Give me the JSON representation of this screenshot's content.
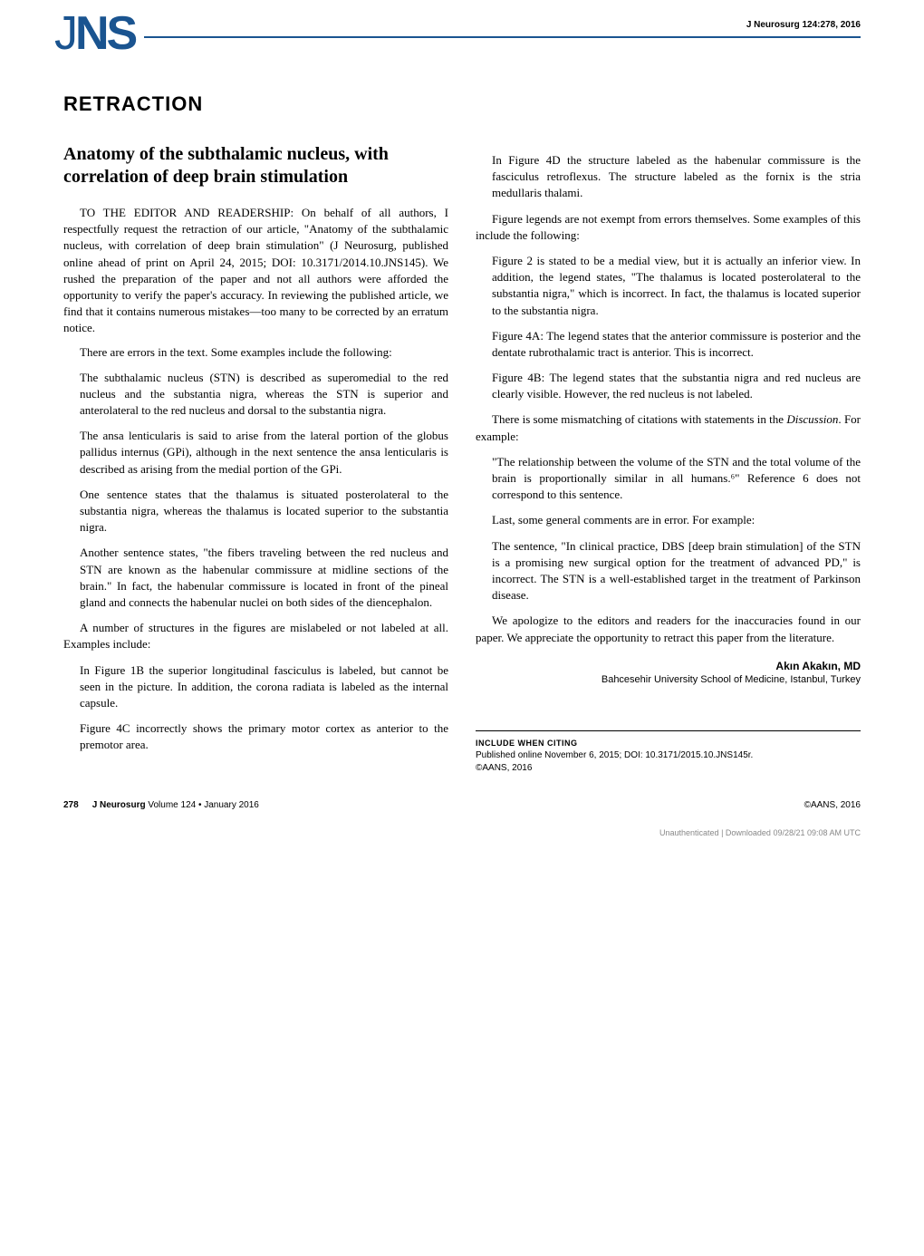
{
  "header": {
    "logo_j": "J",
    "logo_ns": "NS",
    "citation": "J Neurosurg 124:278, 2016"
  },
  "retraction_heading": "RETRACTION",
  "article_title": "Anatomy of the subthalamic nucleus, with correlation of deep brain stimulation",
  "col1": {
    "p1": "TO THE EDITOR AND READERSHIP: On behalf of all authors, I respectfully request the retraction of our article, \"Anatomy of the subthalamic nucleus, with correlation of deep brain stimulation\" (J Neurosurg, published online ahead of print on April 24, 2015; DOI: 10.3171/2014.10.JNS145). We rushed the preparation of the paper and not all authors were afforded the opportunity to verify the paper's accuracy. In reviewing the published article, we find that it contains numerous mistakes—too many to be corrected by an erratum notice.",
    "p2": "There are errors in the text. Some examples include the following:",
    "q1": "The subthalamic nucleus (STN) is described as superomedial to the red nucleus and the substantia nigra, whereas the STN is superior and anterolateral to the red nucleus and dorsal to the substantia nigra.",
    "q2": "The ansa lenticularis is said to arise from the lateral portion of the globus pallidus internus (GPi), although in the next sentence the ansa lenticularis is described as arising from the medial portion of the GPi.",
    "q3": "One sentence states that the thalamus is situated posterolateral to the substantia nigra, whereas the thalamus is located superior to the substantia nigra.",
    "q4": "Another sentence states, \"the fibers traveling between the red nucleus and STN are known as the habenular commissure at midline sections of the brain.\" In fact, the habenular commissure is located in front of the pineal gland and connects the habenular nuclei on both sides of the diencephalon.",
    "p3": "A number of structures in the figures are mislabeled or not labeled at all. Examples include:",
    "q5": "In Figure 1B the superior longitudinal fasciculus is labeled, but cannot be seen in the picture. In addition, the corona radiata is labeled as the internal capsule.",
    "q6": "Figure 4C incorrectly shows the primary motor cortex as anterior to the premotor area."
  },
  "col2": {
    "q1": "In Figure 4D the structure labeled as the habenular commissure is the fasciculus retroflexus. The structure labeled as the fornix is the stria medullaris thalami.",
    "p1": "Figure legends are not exempt from errors themselves. Some examples of this include the following:",
    "q2": "Figure 2 is stated to be a medial view, but it is actually an inferior view. In addition, the legend states, \"The thalamus is located posterolateral to the substantia nigra,\" which is incorrect. In fact, the thalamus is located superior to the substantia nigra.",
    "q3": "Figure 4A: The legend states that the anterior commissure is posterior and the dentate rubrothalamic tract is anterior. This is incorrect.",
    "q4": "Figure 4B: The legend states that the substantia nigra and red nucleus are clearly visible. However, the red nucleus is not labeled.",
    "p2_prefix": "There is some mismatching of citations with statements in the ",
    "p2_italic": "Discussion",
    "p2_suffix": ". For example:",
    "q5": "\"The relationship between the volume of the STN and the total volume of the brain is proportionally similar in all humans.⁶\" Reference 6 does not correspond to this sentence.",
    "p3": "Last, some general comments are in error. For example:",
    "q6": "The sentence, \"In clinical practice, DBS [deep brain stimulation] of the STN is a promising new surgical option for the treatment of advanced PD,\" is incorrect. The STN is a well-established target in the treatment of Parkinson disease.",
    "p4": "We apologize to the editors and readers for the inaccuracies found in our paper. We appreciate the opportunity to retract this paper from the literature.",
    "author_name": "Akın Akakın, MD",
    "author_affiliation": "Bahcesehir University School of Medicine, Istanbul, Turkey",
    "citation_heading": "INCLUDE WHEN CITING",
    "citation_text": "Published online November 6, 2015; DOI: 10.3171/2015.10.JNS145r.",
    "copyright": "©AANS, 2016"
  },
  "footer": {
    "page_num": "278",
    "journal_name": "J Neurosurg",
    "volume_info": " Volume 124 • January 2016",
    "copyright": "©AANS, 2016",
    "download_info": "Unauthenticated | Downloaded 09/28/21 09:08 AM UTC"
  }
}
